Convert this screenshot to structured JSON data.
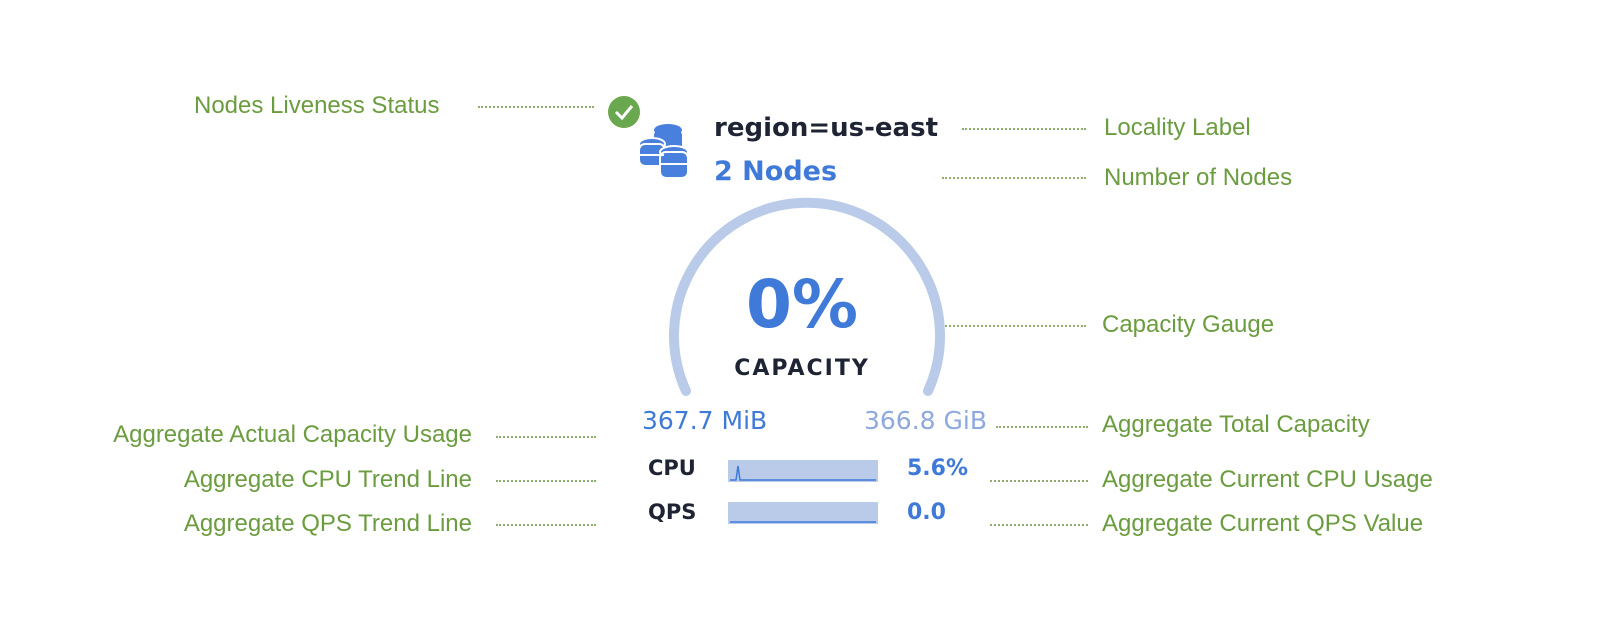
{
  "annotations": {
    "liveness": "Nodes Liveness Status",
    "locality": "Locality Label",
    "nodes": "Number of Nodes",
    "gauge": "Capacity Gauge",
    "usage": "Aggregate Actual Capacity Usage",
    "total": "Aggregate Total Capacity",
    "cpu_trend": "Aggregate CPU Trend Line",
    "cpu_current": "Aggregate Current CPU Usage",
    "qps_trend": "Aggregate QPS Trend Line",
    "qps_current": "Aggregate Current QPS Value"
  },
  "widget": {
    "status": "live",
    "locality": "region=us-east",
    "node_count": "2 Nodes",
    "capacity_percent": "0%",
    "capacity_label": "CAPACITY",
    "capacity_fraction": 0.0,
    "used": "367.7 MiB",
    "total": "366.8 GiB",
    "cpu_label": "CPU",
    "cpu_value": "5.6%",
    "qps_label": "QPS",
    "qps_value": "0.0"
  },
  "colors": {
    "annotation": "#6b9c3f",
    "accent": "#3f7ad9",
    "gauge": "#b9cbe9",
    "status": "#6aa84f"
  }
}
